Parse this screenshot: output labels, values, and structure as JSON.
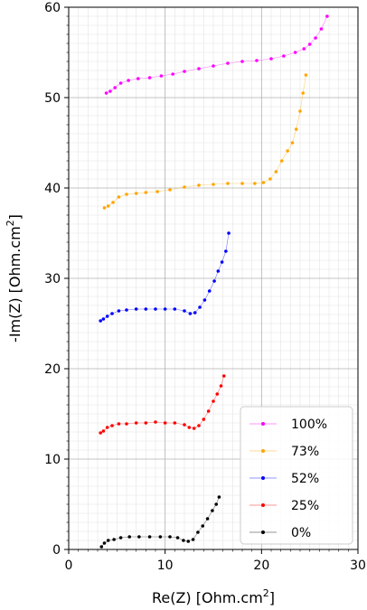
{
  "chart_data": {
    "type": "scatter",
    "xlabel": {
      "base": "Re(Z) [Ohm.cm",
      "sup": "2",
      "end": "]"
    },
    "ylabel": {
      "base": "-Im(Z) [Ohm.cm",
      "sup": "2",
      "end": "]"
    },
    "xlim": [
      0,
      30
    ],
    "ylim": [
      0,
      60
    ],
    "xticks": [
      "0",
      "10",
      "20",
      "30"
    ],
    "yticks": [
      "0",
      "10",
      "20",
      "30",
      "40",
      "50",
      "60"
    ],
    "grid": "major and minor",
    "legend_position": "lower-right",
    "series": [
      {
        "name": "100%",
        "color": "#ff00ff",
        "x": [
          3.9,
          4.3,
          4.8,
          5.4,
          6.2,
          7.2,
          8.4,
          9.6,
          10.8,
          12.0,
          13.5,
          15.0,
          16.5,
          18.0,
          19.5,
          21.0,
          22.3,
          23.5,
          24.4,
          25.0,
          25.6,
          26.2,
          26.8
        ],
        "y": [
          50.5,
          50.7,
          51.1,
          51.6,
          51.9,
          52.1,
          52.2,
          52.4,
          52.6,
          52.9,
          53.2,
          53.5,
          53.8,
          54.0,
          54.1,
          54.3,
          54.6,
          55.0,
          55.4,
          55.9,
          56.6,
          57.6,
          59.0
        ]
      },
      {
        "name": "73%",
        "color": "#ffa500",
        "x": [
          3.7,
          4.1,
          4.6,
          5.2,
          6.0,
          7.0,
          8.0,
          9.2,
          10.5,
          12.0,
          13.5,
          15.0,
          16.5,
          18.0,
          19.3,
          20.2,
          20.9,
          21.5,
          22.1,
          22.7,
          23.2,
          23.6,
          24.0,
          24.3,
          24.6
        ],
        "y": [
          37.8,
          38.0,
          38.4,
          39.0,
          39.3,
          39.4,
          39.5,
          39.6,
          39.8,
          40.1,
          40.3,
          40.4,
          40.5,
          40.5,
          40.5,
          40.6,
          41.0,
          41.8,
          43.0,
          44.1,
          45.0,
          46.5,
          48.5,
          50.5,
          52.5
        ]
      },
      {
        "name": "52%",
        "color": "#0000ff",
        "x": [
          3.3,
          3.6,
          4.0,
          4.5,
          5.2,
          6.0,
          7.0,
          8.0,
          9.0,
          10.0,
          11.0,
          12.0,
          12.6,
          13.1,
          13.6,
          14.1,
          14.6,
          15.1,
          15.5,
          15.9,
          16.3,
          16.6
        ],
        "y": [
          25.3,
          25.5,
          25.8,
          26.1,
          26.4,
          26.5,
          26.6,
          26.6,
          26.6,
          26.6,
          26.6,
          26.4,
          26.1,
          26.2,
          26.8,
          27.6,
          28.6,
          29.7,
          30.8,
          31.8,
          33.0,
          35.0
        ]
      },
      {
        "name": "25%",
        "color": "#ff0000",
        "x": [
          3.3,
          3.6,
          4.0,
          4.5,
          5.2,
          6.0,
          7.0,
          8.0,
          9.0,
          10.0,
          11.0,
          12.0,
          12.5,
          13.0,
          13.5,
          14.0,
          14.5,
          15.0,
          15.4,
          15.8,
          16.1
        ],
        "y": [
          12.9,
          13.1,
          13.5,
          13.7,
          13.9,
          13.9,
          14.0,
          14.0,
          14.1,
          14.0,
          14.0,
          13.8,
          13.5,
          13.4,
          13.7,
          14.4,
          15.3,
          16.4,
          17.2,
          18.1,
          19.2
        ]
      },
      {
        "name": "0%",
        "color": "#000000",
        "x": [
          3.4,
          3.7,
          4.1,
          4.7,
          5.4,
          6.3,
          7.3,
          8.4,
          9.5,
          10.5,
          11.3,
          11.9,
          12.4,
          12.9,
          13.4,
          13.9,
          14.4,
          14.9,
          15.3,
          15.6
        ],
        "y": [
          0.3,
          0.7,
          1.0,
          1.1,
          1.3,
          1.4,
          1.4,
          1.4,
          1.4,
          1.4,
          1.3,
          1.0,
          0.9,
          1.1,
          1.9,
          2.6,
          3.4,
          4.3,
          5.0,
          5.8
        ]
      }
    ]
  }
}
